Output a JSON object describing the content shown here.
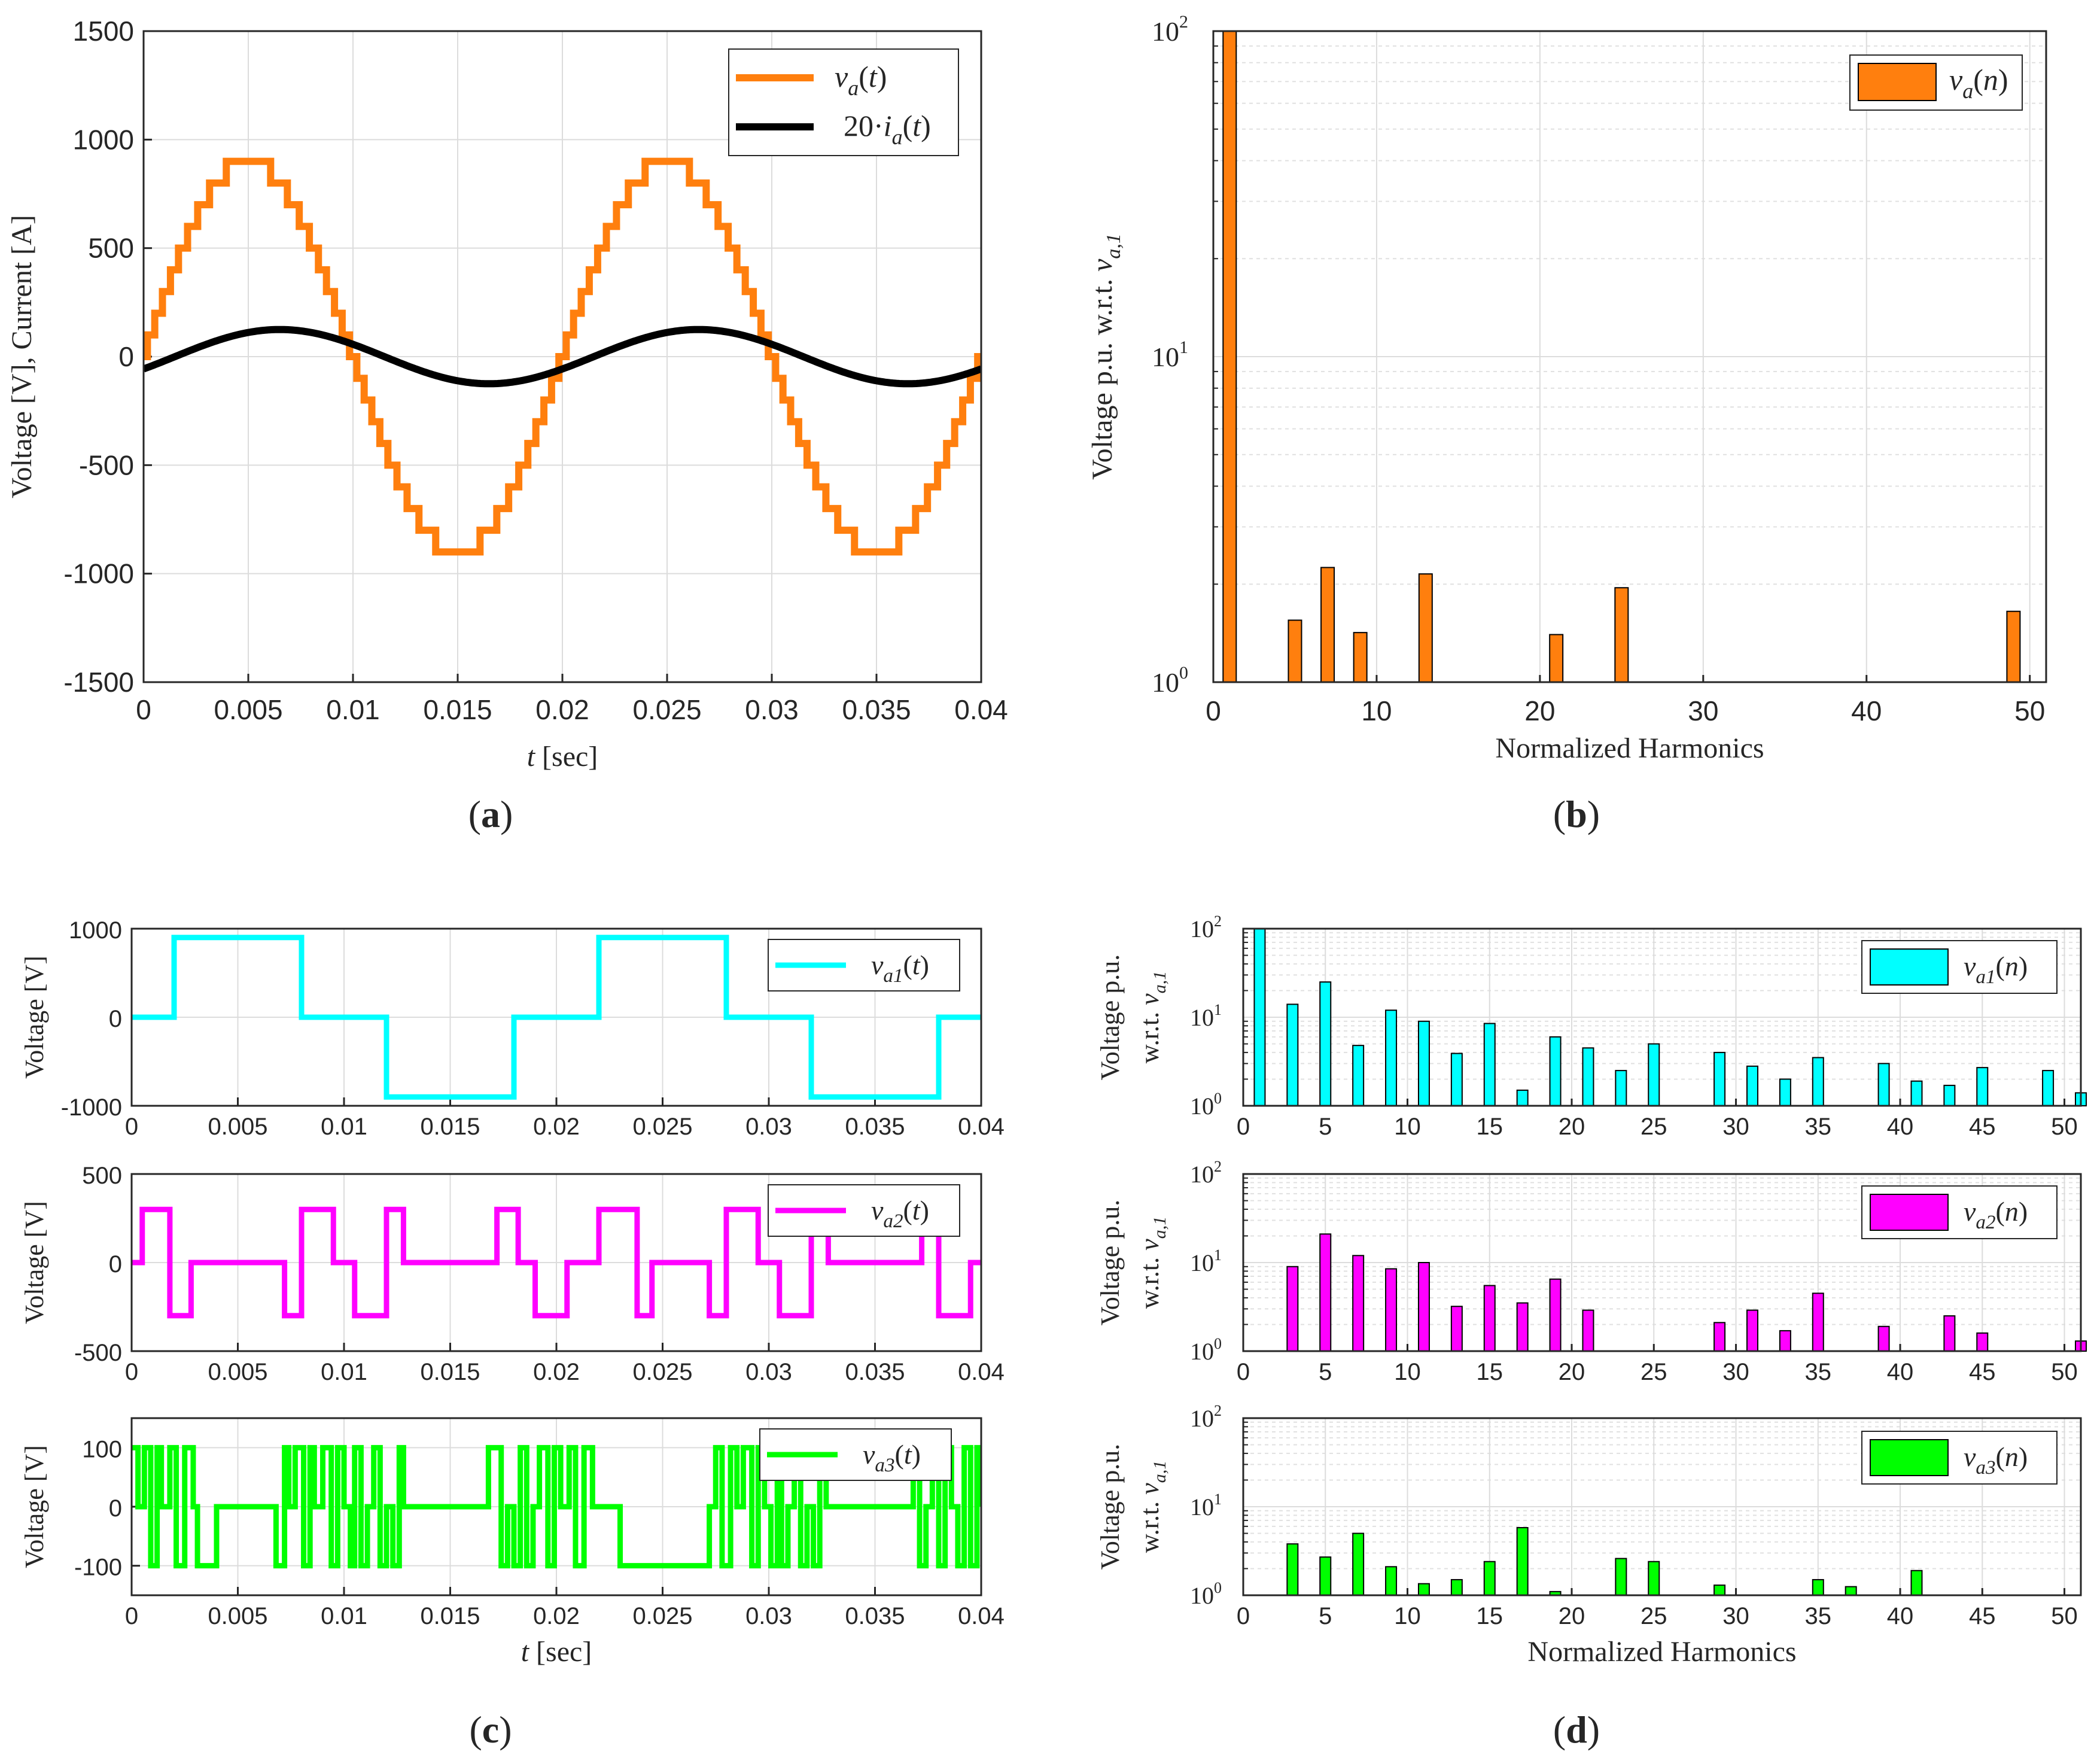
{
  "colors": {
    "orange": "#ff7f0e",
    "black": "#000000",
    "cyan": "#00ffff",
    "magenta": "#ff00ff",
    "green": "#00ff00"
  },
  "chart_data": [
    {
      "id": "a",
      "type": "line",
      "caption": "(a)",
      "xlabel_var": "t",
      "xlabel_unit": "[sec]",
      "ylabel": "Voltage [V], Current [A]",
      "xlim": [
        0,
        0.04
      ],
      "ylim": [
        -1500,
        1500
      ],
      "xticks": [
        "0",
        "0.005",
        "0.01",
        "0.015",
        "0.02",
        "0.025",
        "0.03",
        "0.035",
        "0.04"
      ],
      "yticks": [
        "-1500",
        "-1000",
        "-500",
        "0",
        "500",
        "1000",
        "1500"
      ],
      "legend": [
        "v_a(t)",
        "20·i_a(t)"
      ],
      "series": [
        {
          "name": "v_a(t)",
          "color": "orange",
          "kind": "staircase",
          "levels": [
            0,
            100,
            200,
            300,
            400,
            500,
            600,
            700,
            800,
            900
          ],
          "formula": "round(9*sin(2*pi*50*t))*100",
          "period": 0.02
        },
        {
          "name": "20·i_a(t)",
          "color": "black",
          "kind": "sine",
          "amplitude": 125,
          "frequency": 50,
          "phase_deg": -27
        }
      ]
    },
    {
      "id": "b",
      "type": "bar",
      "caption": "(b)",
      "xlabel": "Normalized Harmonics",
      "ylabel_prefix": "Voltage p.u. w.r.t.",
      "ylabel_var": "v",
      "ylabel_sub": "a,1",
      "yscale": "log",
      "xlim": [
        0,
        51
      ],
      "ylim": [
        1,
        100
      ],
      "xticks": [
        "0",
        "10",
        "20",
        "30",
        "40",
        "50"
      ],
      "yticks": [
        "10",
        "10",
        "10"
      ],
      "ytick_exp": [
        "0",
        "1",
        "2"
      ],
      "legend": [
        "v_a(n)"
      ],
      "color": "orange",
      "harmonics": [
        1,
        5,
        7,
        9,
        13,
        21,
        25,
        49
      ],
      "values": [
        100,
        1.55,
        2.25,
        1.42,
        2.15,
        1.4,
        1.95,
        1.65
      ]
    },
    {
      "id": "c1",
      "type": "line",
      "ylabel": "Voltage [V]",
      "xlim": [
        0,
        0.04
      ],
      "ylim": [
        -1000,
        1000
      ],
      "xticks": [
        "0",
        "0.005",
        "0.01",
        "0.015",
        "0.02",
        "0.025",
        "0.03",
        "0.035",
        "0.04"
      ],
      "yticks": [
        "-1000",
        "0",
        "1000"
      ],
      "legend": [
        "v_a1(t)"
      ],
      "series": [
        {
          "name": "v_a1(t)",
          "color": "cyan",
          "kind": "step",
          "steps": [
            [
              0,
              0
            ],
            [
              0.002,
              900
            ],
            [
              0.008,
              0
            ],
            [
              0.012,
              -900
            ],
            [
              0.018,
              0
            ],
            [
              0.022,
              900
            ],
            [
              0.028,
              0
            ],
            [
              0.032,
              -900
            ],
            [
              0.038,
              0
            ],
            [
              0.04,
              0
            ]
          ]
        }
      ]
    },
    {
      "id": "c2",
      "type": "line",
      "ylabel": "Voltage [V]",
      "xlim": [
        0,
        0.04
      ],
      "ylim": [
        -500,
        500
      ],
      "xticks": [
        "0",
        "0.005",
        "0.01",
        "0.015",
        "0.02",
        "0.025",
        "0.03",
        "0.035",
        "0.04"
      ],
      "yticks": [
        "-500",
        "0",
        "500"
      ],
      "legend": [
        "v_a2(t)"
      ],
      "series": [
        {
          "name": "v_a2(t)",
          "color": "magenta",
          "kind": "step",
          "steps": [
            [
              0,
              0
            ],
            [
              0.0005,
              300
            ],
            [
              0.0018,
              -300
            ],
            [
              0.0028,
              0
            ],
            [
              0.0072,
              -300
            ],
            [
              0.008,
              300
            ],
            [
              0.0095,
              0
            ],
            [
              0.0105,
              -300
            ],
            [
              0.012,
              300
            ],
            [
              0.0128,
              0
            ],
            [
              0.0172,
              300
            ],
            [
              0.0182,
              0
            ],
            [
              0.019,
              -300
            ],
            [
              0.0205,
              0
            ],
            [
              0.022,
              300
            ],
            [
              0.0238,
              -300
            ],
            [
              0.0245,
              0
            ],
            [
              0.0272,
              -300
            ],
            [
              0.028,
              300
            ],
            [
              0.0295,
              0
            ],
            [
              0.0305,
              -300
            ],
            [
              0.032,
              300
            ],
            [
              0.0328,
              0
            ],
            [
              0.0372,
              300
            ],
            [
              0.038,
              -300
            ],
            [
              0.0395,
              0
            ],
            [
              0.04,
              0
            ]
          ]
        }
      ]
    },
    {
      "id": "c3",
      "type": "line",
      "ylabel": "Voltage [V]",
      "xlabel_var": "t",
      "xlabel_unit": "[sec]",
      "caption": "(c)",
      "xlim": [
        0,
        0.04
      ],
      "ylim": [
        -150,
        150
      ],
      "xticks": [
        "0",
        "0.005",
        "0.01",
        "0.015",
        "0.02",
        "0.025",
        "0.03",
        "0.035",
        "0.04"
      ],
      "yticks": [
        "-100",
        "0",
        "100"
      ],
      "legend": [
        "v_a3(t)"
      ],
      "series": [
        {
          "name": "v_a3(t)",
          "color": "green",
          "kind": "step",
          "steps": [
            [
              0,
              100
            ],
            [
              0.0003,
              0
            ],
            [
              0.0006,
              100
            ],
            [
              0.0009,
              -100
            ],
            [
              0.0012,
              100
            ],
            [
              0.0014,
              0
            ],
            [
              0.0018,
              100
            ],
            [
              0.0021,
              -100
            ],
            [
              0.0025,
              100
            ],
            [
              0.0029,
              0
            ],
            [
              0.0031,
              -100
            ],
            [
              0.004,
              0
            ],
            [
              0.0068,
              -100
            ],
            [
              0.0072,
              100
            ],
            [
              0.0074,
              0
            ],
            [
              0.0077,
              100
            ],
            [
              0.0081,
              -100
            ],
            [
              0.0084,
              100
            ],
            [
              0.0086,
              0
            ],
            [
              0.009,
              100
            ],
            [
              0.0094,
              -100
            ],
            [
              0.0097,
              100
            ],
            [
              0.01,
              0
            ],
            [
              0.0103,
              -100
            ],
            [
              0.0105,
              100
            ],
            [
              0.0108,
              -100
            ],
            [
              0.0111,
              0
            ],
            [
              0.0114,
              100
            ],
            [
              0.0117,
              -100
            ],
            [
              0.012,
              0
            ],
            [
              0.0123,
              -100
            ],
            [
              0.0126,
              100
            ],
            [
              0.0128,
              0
            ],
            [
              0.0168,
              100
            ],
            [
              0.0174,
              -100
            ],
            [
              0.0177,
              0
            ],
            [
              0.018,
              -100
            ],
            [
              0.0183,
              100
            ],
            [
              0.0186,
              -100
            ],
            [
              0.0189,
              0
            ],
            [
              0.0192,
              100
            ],
            [
              0.0196,
              -100
            ],
            [
              0.0199,
              100
            ],
            [
              0.0202,
              0
            ],
            [
              0.0206,
              100
            ],
            [
              0.0209,
              -100
            ],
            [
              0.0213,
              100
            ],
            [
              0.0217,
              0
            ],
            [
              0.023,
              -100
            ],
            [
              0.0272,
              0
            ],
            [
              0.0275,
              100
            ],
            [
              0.0278,
              -100
            ],
            [
              0.0282,
              100
            ],
            [
              0.0285,
              0
            ],
            [
              0.0288,
              100
            ],
            [
              0.0292,
              -100
            ],
            [
              0.0295,
              100
            ],
            [
              0.0298,
              0
            ],
            [
              0.0301,
              -100
            ],
            [
              0.0304,
              100
            ],
            [
              0.0306,
              -100
            ],
            [
              0.0309,
              0
            ],
            [
              0.0312,
              100
            ],
            [
              0.0315,
              -100
            ],
            [
              0.0318,
              0
            ],
            [
              0.0321,
              -100
            ],
            [
              0.0324,
              100
            ],
            [
              0.0327,
              0
            ],
            [
              0.0368,
              100
            ],
            [
              0.0371,
              -100
            ],
            [
              0.0374,
              0
            ],
            [
              0.0377,
              100
            ],
            [
              0.038,
              -100
            ],
            [
              0.0383,
              100
            ],
            [
              0.0386,
              0
            ],
            [
              0.0389,
              -100
            ],
            [
              0.0392,
              100
            ],
            [
              0.0395,
              -100
            ],
            [
              0.0398,
              100
            ],
            [
              0.04,
              0
            ]
          ]
        }
      ]
    },
    {
      "id": "d1",
      "type": "bar",
      "ylabel_prefix": "Voltage p.u.",
      "ylabel_prefix2": "w.r.t.",
      "ylabel_var": "v",
      "ylabel_sub": "a,1",
      "yscale": "log",
      "xlim": [
        0,
        51
      ],
      "ylim": [
        1,
        100
      ],
      "xticks": [
        "0",
        "5",
        "10",
        "15",
        "20",
        "25",
        "30",
        "35",
        "40",
        "45",
        "50"
      ],
      "yticks": [
        "10",
        "10",
        "10"
      ],
      "ytick_exp": [
        "0",
        "1",
        "2"
      ],
      "legend": [
        "v_a1(n)"
      ],
      "color": "cyan",
      "harmonics": [
        1,
        3,
        5,
        7,
        9,
        11,
        13,
        15,
        17,
        19,
        21,
        23,
        25,
        29,
        31,
        33,
        35,
        39,
        41,
        43,
        45,
        49,
        51
      ],
      "values": [
        100,
        14,
        25,
        4.8,
        12,
        9,
        3.9,
        8.5,
        1.5,
        6,
        4.5,
        2.5,
        5,
        4,
        2.8,
        2,
        3.5,
        3,
        1.9,
        1.7,
        2.7,
        2.5,
        1.4
      ]
    },
    {
      "id": "d2",
      "type": "bar",
      "ylabel_prefix": "Voltage p.u.",
      "ylabel_prefix2": "w.r.t.",
      "ylabel_var": "v",
      "ylabel_sub": "a,1",
      "yscale": "log",
      "xlim": [
        0,
        51
      ],
      "ylim": [
        1,
        100
      ],
      "xticks": [
        "0",
        "5",
        "10",
        "15",
        "20",
        "25",
        "30",
        "35",
        "40",
        "45",
        "50"
      ],
      "yticks": [
        "10",
        "10",
        "10"
      ],
      "ytick_exp": [
        "0",
        "1",
        "2"
      ],
      "legend": [
        "v_a2(n)"
      ],
      "color": "magenta",
      "harmonics": [
        3,
        5,
        7,
        9,
        11,
        13,
        15,
        17,
        19,
        21,
        29,
        31,
        33,
        35,
        39,
        43,
        45,
        51
      ],
      "values": [
        9,
        21,
        12,
        8.5,
        10,
        3.2,
        5.5,
        3.5,
        6.5,
        2.9,
        2.1,
        2.9,
        1.7,
        4.5,
        1.9,
        2.5,
        1.6,
        1.3
      ]
    },
    {
      "id": "d3",
      "type": "bar",
      "ylabel_prefix": "Voltage p.u.",
      "ylabel_prefix2": "w.r.t.",
      "ylabel_var": "v",
      "ylabel_sub": "a,1",
      "xlabel": "Normalized Harmonics",
      "caption": "(d)",
      "yscale": "log",
      "xlim": [
        0,
        51
      ],
      "ylim": [
        1,
        100
      ],
      "xticks": [
        "0",
        "5",
        "10",
        "15",
        "20",
        "25",
        "30",
        "35",
        "40",
        "45",
        "50"
      ],
      "yticks": [
        "10",
        "10",
        "10"
      ],
      "ytick_exp": [
        "0",
        "1",
        "2"
      ],
      "legend": [
        "v_a3(n)"
      ],
      "color": "green",
      "harmonics": [
        3,
        5,
        7,
        9,
        11,
        13,
        15,
        17,
        19,
        23,
        25,
        29,
        35,
        37,
        41
      ],
      "values": [
        3.8,
        2.7,
        5,
        2.1,
        1.35,
        1.5,
        2.4,
        5.8,
        1.1,
        2.6,
        2.4,
        1.3,
        1.5,
        1.25,
        1.9
      ]
    }
  ]
}
